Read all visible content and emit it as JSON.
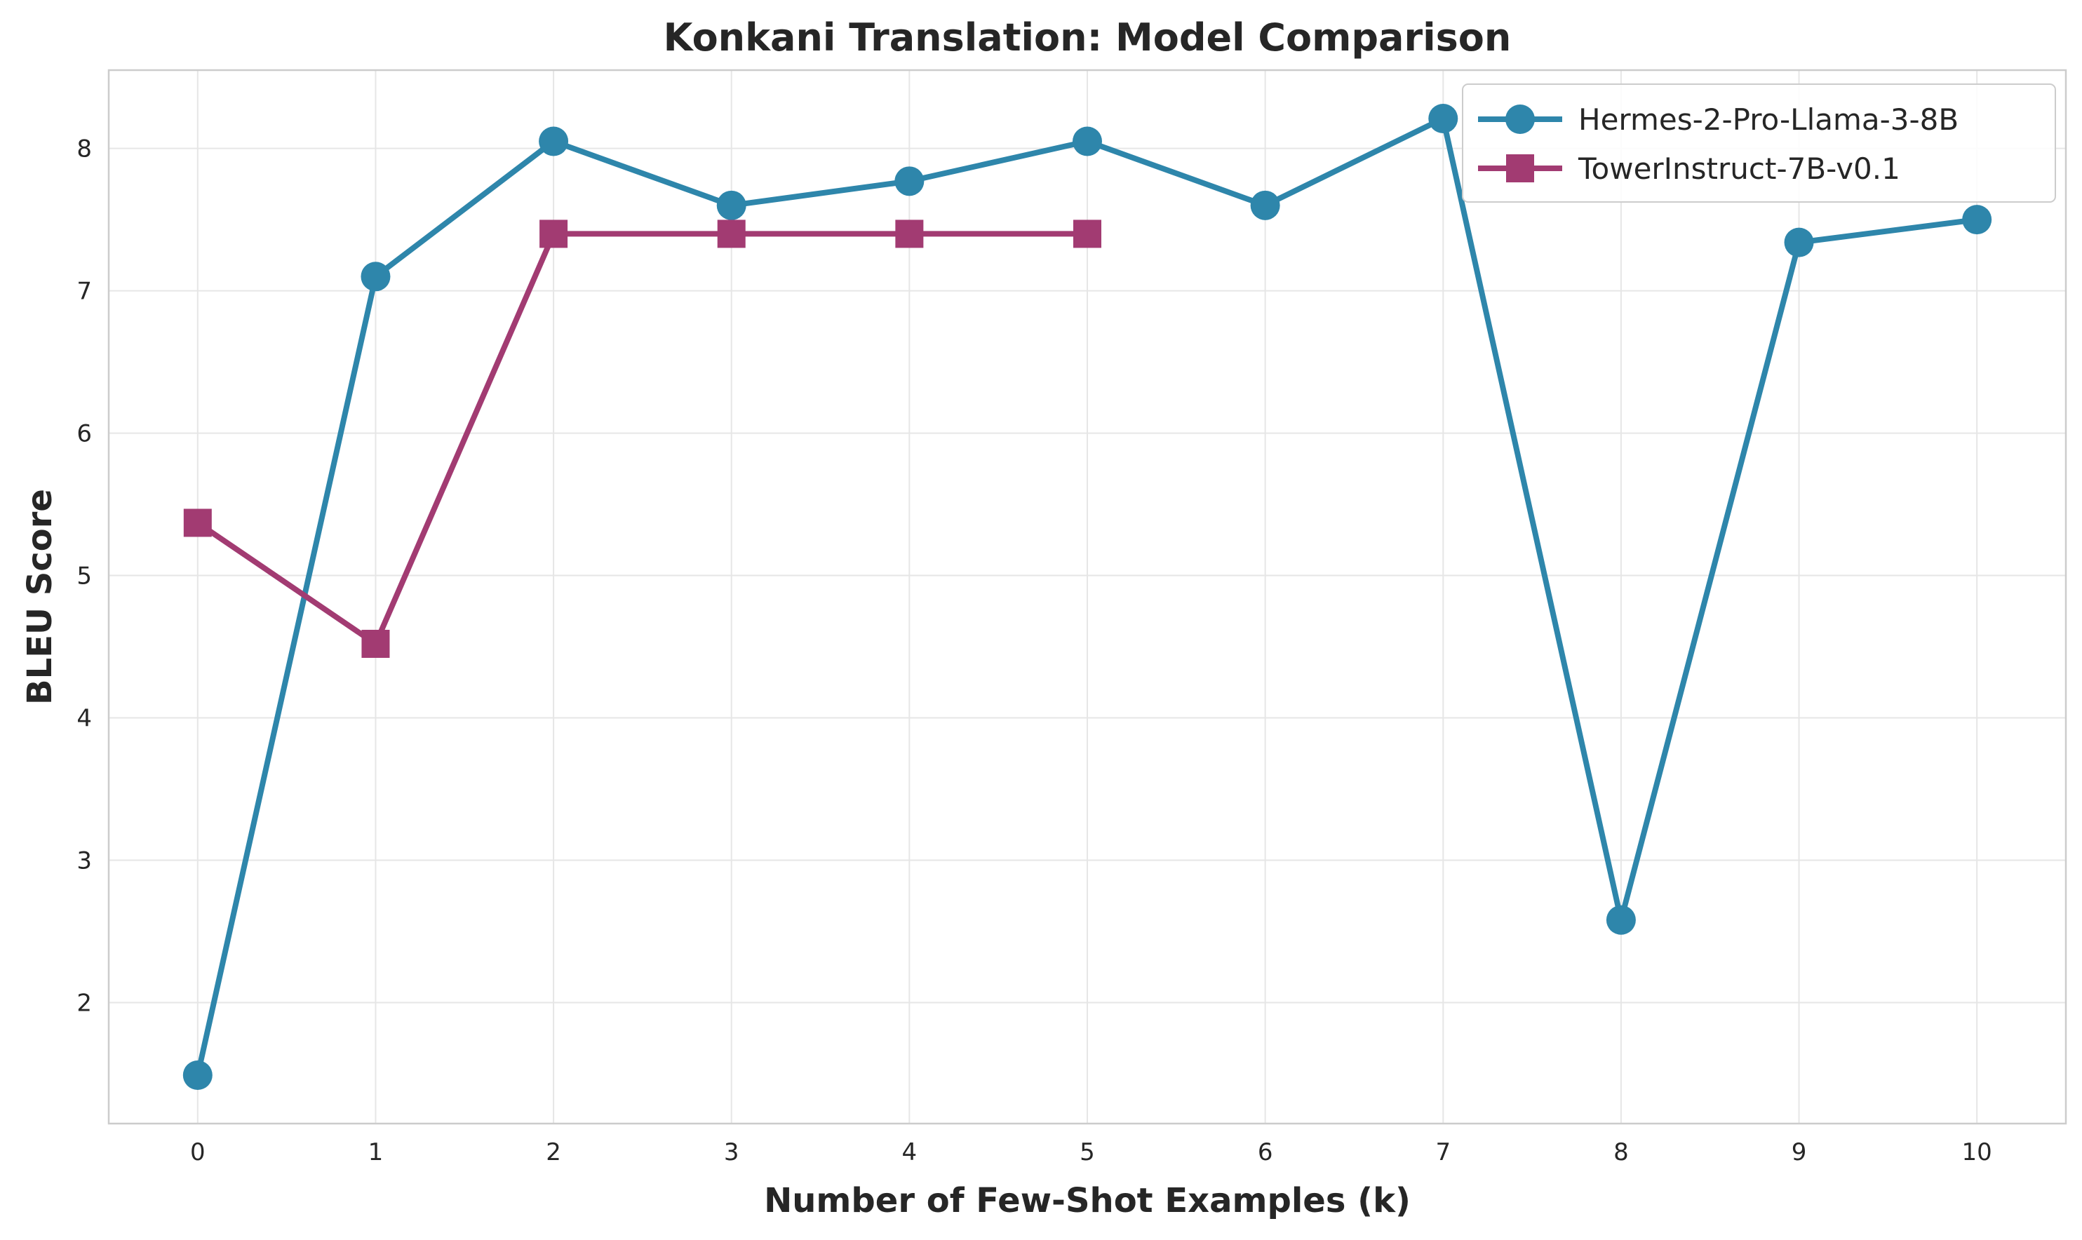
{
  "chart_data": {
    "type": "line",
    "title": "Konkani Translation: Model Comparison",
    "xlabel": "Number of Few-Shot Examples (k)",
    "ylabel": "BLEU Score",
    "xlim": [
      -0.5,
      10.5
    ],
    "ylim": [
      1.15,
      8.55
    ],
    "x_ticks": [
      0,
      1,
      2,
      3,
      4,
      5,
      6,
      7,
      8,
      9,
      10
    ],
    "y_ticks": [
      2,
      3,
      4,
      5,
      6,
      7,
      8
    ],
    "grid": true,
    "legend_position": "top-right",
    "series": [
      {
        "name": "Hermes-2-Pro-Llama-3-8B",
        "color": "#2e86ab",
        "marker": "circle",
        "x": [
          0,
          1,
          2,
          3,
          4,
          5,
          6,
          7,
          8,
          9,
          10
        ],
        "y": [
          1.49,
          7.1,
          8.05,
          7.6,
          7.77,
          8.05,
          7.6,
          8.21,
          2.58,
          7.34,
          7.5
        ]
      },
      {
        "name": "TowerInstruct-7B-v0.1",
        "color": "#a23b72",
        "marker": "square",
        "x": [
          0,
          1,
          2,
          3,
          4,
          5
        ],
        "y": [
          5.37,
          4.52,
          7.4,
          7.4,
          7.4,
          7.4
        ]
      }
    ]
  }
}
